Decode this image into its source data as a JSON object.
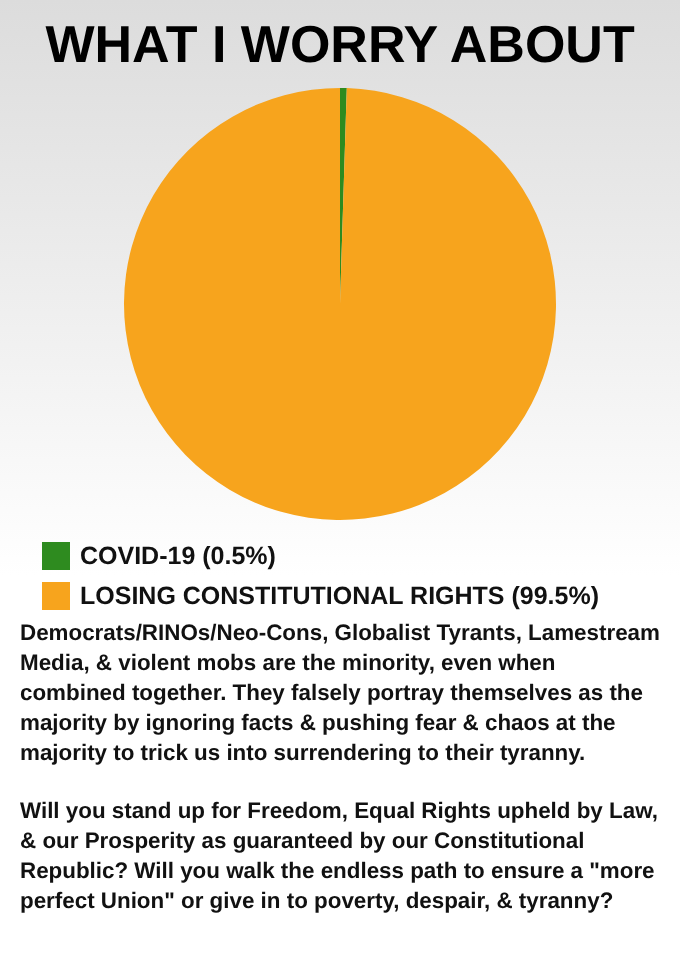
{
  "chart_data": {
    "type": "pie",
    "title": "WHAT I WORRY ABOUT",
    "categories": [
      "COVID-19 (0.5%)",
      "LOSING CONSTITUTIONAL RIGHTS (99.5%)"
    ],
    "values": [
      0.5,
      99.5
    ],
    "colors": [
      "#2e8b1f",
      "#f7a41d"
    ],
    "legend": "bottom left",
    "annotations": [
      "Democrats/RINOs/Neo-Cons, Globalist Tyrants, Lamestream Media, & violent mobs are the minority, even when combined together. They falsely portray themselves as the majority by ignoring facts & pushing fear & chaos at the majority to trick us into surrendering to their tyranny.",
      "Will you stand up for Freedom, Equal Rights upheld by Law, & our Prosperity as guaranteed by our Constitutional Republic? Will you walk the endless path to ensure a \"more perfect Union\" or give in to poverty, despair, & tyranny?"
    ]
  }
}
